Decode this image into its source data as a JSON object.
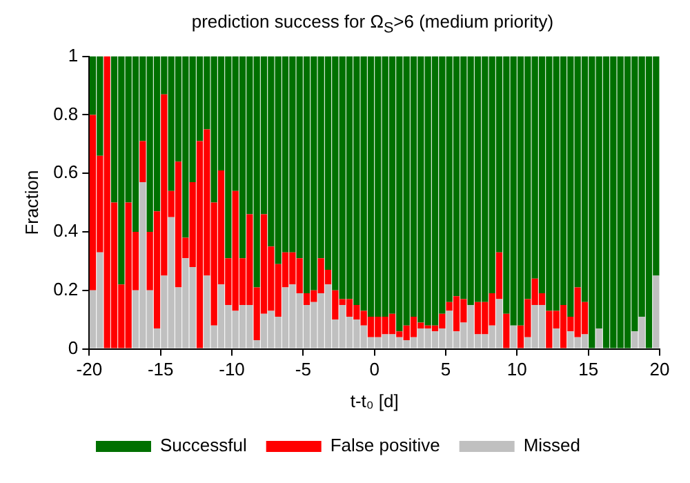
{
  "chart_data": {
    "type": "bar",
    "title": "prediction success for Ω$_{S}$>6 (medium priority)",
    "xlabel": "t-t₀ [d]",
    "ylabel": "Fraction",
    "stacked": true,
    "legend": "bottom",
    "grid": false,
    "x": [
      -19.75,
      -19.25,
      -18.75,
      -18.25,
      -17.75,
      -17.25,
      -16.75,
      -16.25,
      -15.75,
      -15.25,
      -14.75,
      -14.25,
      -13.75,
      -13.25,
      -12.75,
      -12.25,
      -11.75,
      -11.25,
      -10.75,
      -10.25,
      -9.75,
      -9.25,
      -8.75,
      -8.25,
      -7.75,
      -7.25,
      -6.75,
      -6.25,
      -5.75,
      -5.25,
      -4.75,
      -4.25,
      -3.75,
      -3.25,
      -2.75,
      -2.25,
      -1.75,
      -1.25,
      -0.75,
      -0.25,
      0.25,
      0.75,
      1.25,
      1.75,
      2.25,
      2.75,
      3.25,
      3.75,
      4.25,
      4.75,
      5.25,
      5.75,
      6.25,
      6.75,
      7.25,
      7.75,
      8.25,
      8.75,
      9.25,
      9.75,
      10.25,
      10.75,
      11.25,
      11.75,
      12.25,
      12.75,
      13.25,
      13.75,
      14.25,
      14.75,
      15.25,
      15.75,
      16.25,
      16.75,
      17.25,
      17.75,
      18.25,
      18.75,
      19.25,
      19.75
    ],
    "series": [
      {
        "name": "Missed",
        "color": "#c0c0c0",
        "values": [
          0.2,
          0.33,
          0,
          0,
          0,
          0,
          0.2,
          0.57,
          0.2,
          0.07,
          0.25,
          0.45,
          0.21,
          0.31,
          0.28,
          0,
          0.25,
          0.08,
          0.22,
          0.15,
          0.13,
          0.15,
          0.15,
          0.03,
          0.12,
          0.13,
          0.11,
          0.21,
          0.22,
          0.19,
          0.15,
          0.16,
          0.19,
          0.22,
          0.1,
          0.15,
          0.11,
          0.1,
          0.08,
          0.04,
          0.04,
          0.05,
          0.05,
          0.04,
          0.03,
          0.04,
          0.07,
          0.07,
          0.06,
          0.07,
          0.13,
          0.06,
          0.09,
          0.15,
          0.05,
          0.05,
          0.08,
          0.17,
          0,
          0.08,
          0,
          0.04,
          0.15,
          0.15,
          0,
          0.07,
          0,
          0.06,
          0.04,
          0.05,
          0,
          0.07,
          0,
          0,
          0,
          0,
          0.06,
          0.11,
          0,
          0.25
        ]
      },
      {
        "name": "False positive",
        "color": "#ff0000",
        "values": [
          0.6,
          0.33,
          1,
          0.5,
          0.22,
          0.5,
          0.2,
          0.14,
          0.2,
          0.4,
          0.62,
          0.09,
          0.43,
          0.07,
          0.29,
          0.71,
          0.5,
          0.42,
          0.39,
          0.16,
          0.41,
          0.16,
          0.31,
          0.18,
          0.34,
          0.22,
          0.18,
          0.12,
          0.11,
          0.12,
          0.04,
          0.04,
          0.12,
          0.05,
          0.1,
          0.02,
          0.06,
          0.05,
          0.05,
          0.07,
          0.07,
          0.06,
          0.07,
          0.02,
          0.05,
          0.07,
          0.02,
          0.01,
          0.02,
          0.05,
          0.03,
          0.12,
          0.08,
          0,
          0.11,
          0.11,
          0.11,
          0.16,
          0.12,
          0,
          0.08,
          0.13,
          0.09,
          0.04,
          0.13,
          0.06,
          0.15,
          0.05,
          0.17,
          0.11,
          0,
          0,
          0,
          0,
          0,
          0,
          0,
          0,
          0,
          0
        ]
      },
      {
        "name": "Successful",
        "color": "#007000",
        "values": [
          0.2,
          0.34,
          0,
          0.5,
          0.78,
          0.5,
          0.6,
          0.29,
          0.6,
          0.53,
          0.13,
          0.46,
          0.36,
          0.62,
          0.43,
          0.29,
          0.25,
          0.5,
          0.39,
          0.69,
          0.46,
          0.69,
          0.54,
          0.79,
          0.54,
          0.65,
          0.71,
          0.67,
          0.67,
          0.69,
          0.81,
          0.8,
          0.69,
          0.73,
          0.8,
          0.83,
          0.83,
          0.85,
          0.87,
          0.89,
          0.89,
          0.89,
          0.88,
          0.94,
          0.92,
          0.89,
          0.91,
          0.92,
          0.92,
          0.88,
          0.84,
          0.82,
          0.83,
          0.85,
          0.84,
          0.84,
          0.81,
          0.67,
          0.88,
          0.92,
          0.92,
          0.83,
          0.76,
          0.81,
          0.87,
          0.87,
          0.85,
          0.89,
          0.79,
          0.84,
          1,
          0.93,
          1,
          1,
          1,
          1,
          0.94,
          0.89,
          1,
          0.75
        ]
      }
    ],
    "xlim": [
      -20,
      20
    ],
    "xticks": [
      -20,
      -15,
      -10,
      -5,
      0,
      5,
      10,
      15,
      20
    ],
    "ylim": [
      0,
      1
    ],
    "yticks": [
      0,
      0.2,
      0.4,
      0.6,
      0.8,
      1
    ]
  }
}
